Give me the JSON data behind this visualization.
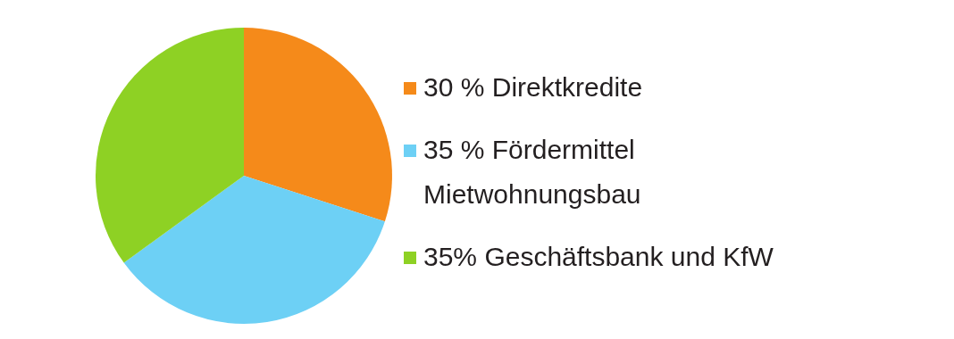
{
  "chart_data": {
    "type": "pie",
    "categories": [
      "Direktkredite",
      "Fördermittel Mietwohnungsbau",
      "Geschäftsbank und KfW"
    ],
    "values": [
      30,
      35,
      35
    ],
    "value_labels": [
      "30 %",
      "35 %",
      "35%"
    ],
    "colors": [
      "#f58a1a",
      "#6dd0f5",
      "#8ed124"
    ],
    "legend": "right"
  }
}
